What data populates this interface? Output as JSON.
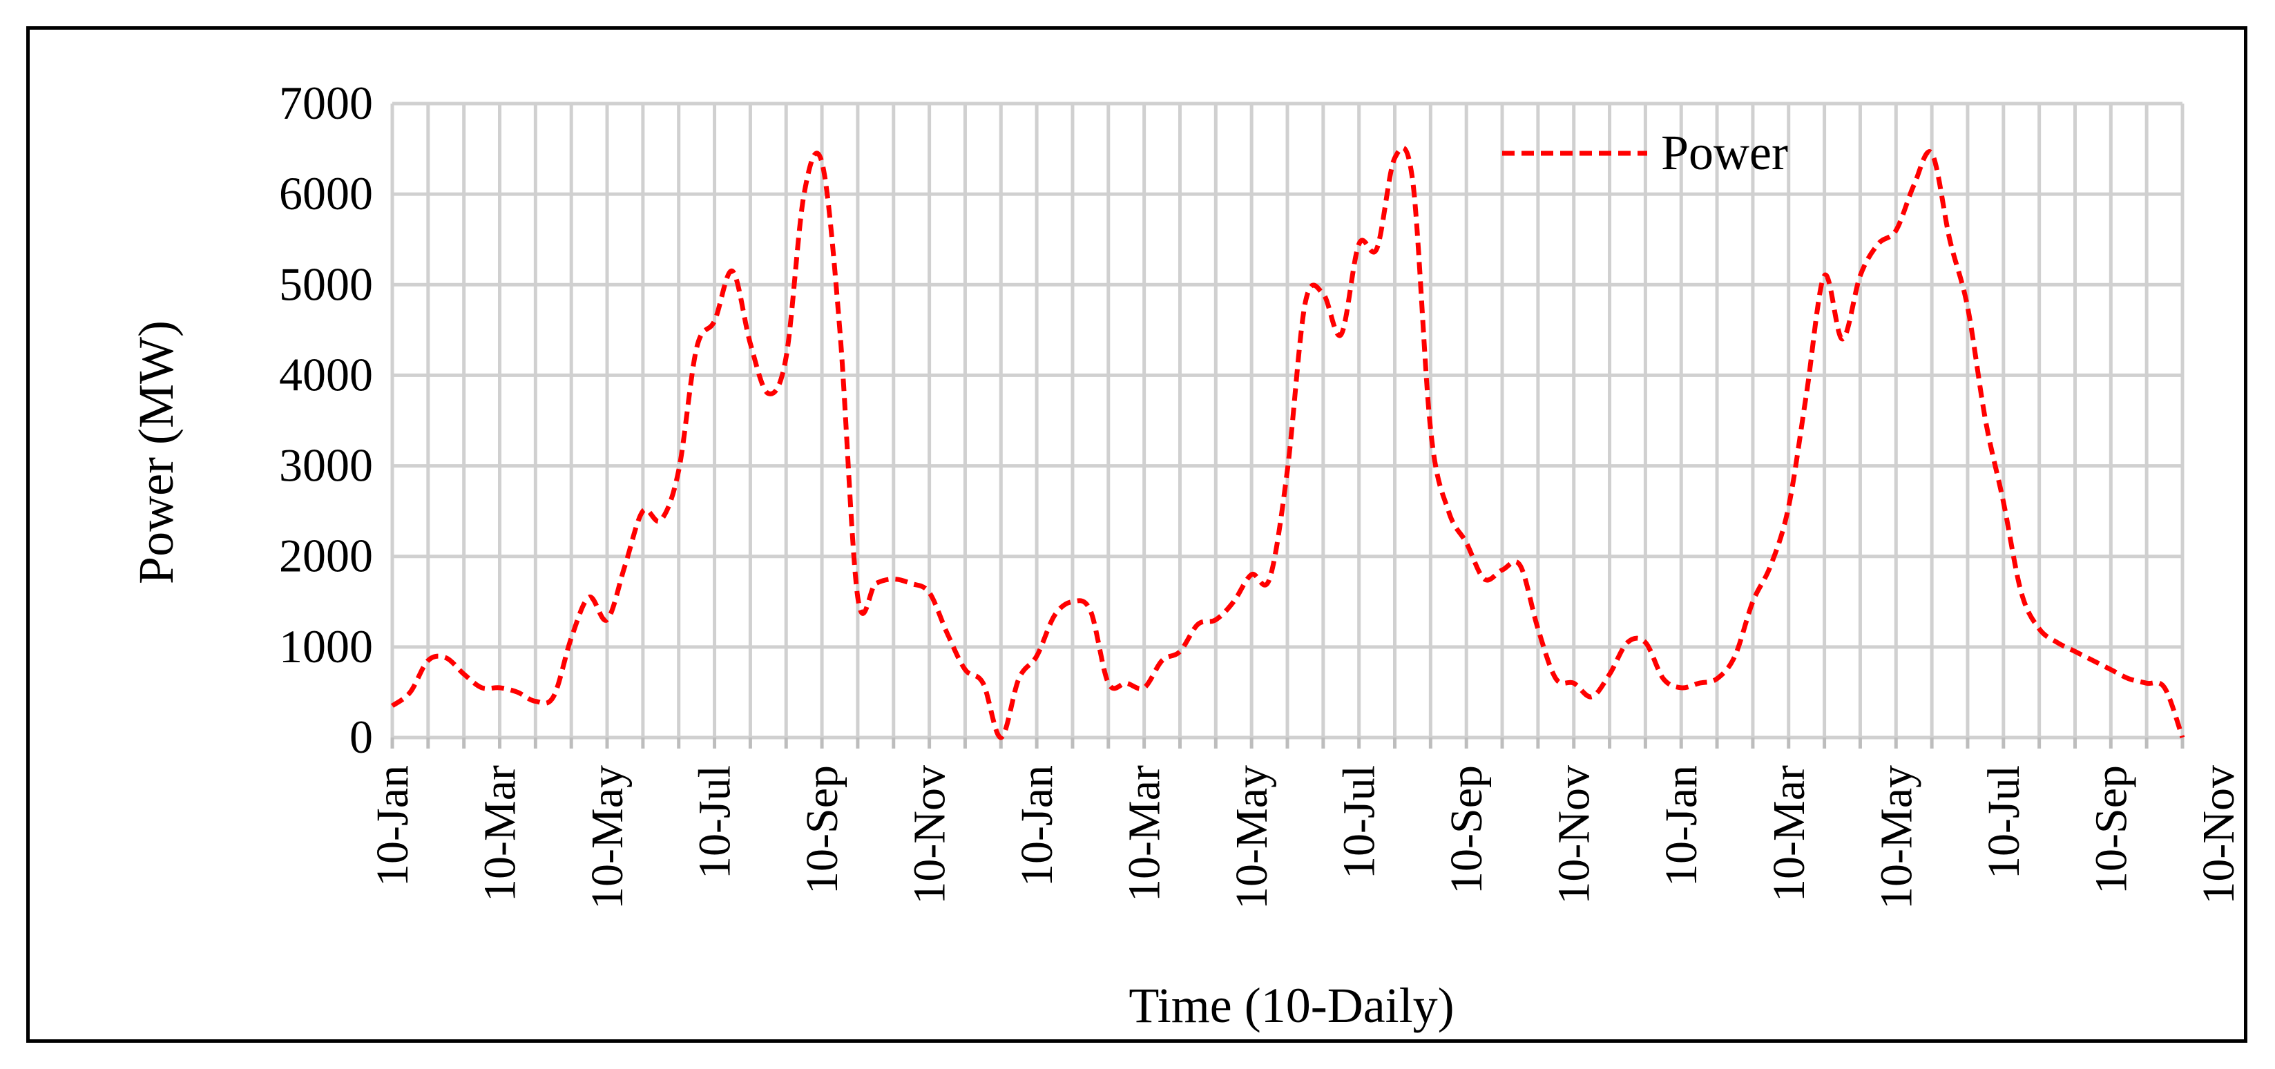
{
  "chart_data": {
    "type": "line",
    "title": "",
    "xlabel": "Time (10-Daily)",
    "ylabel": "Power (MW)",
    "ylim": [
      0,
      7000
    ],
    "yticks": [
      0,
      1000,
      2000,
      3000,
      4000,
      5000,
      6000,
      7000
    ],
    "x_tick_labels": [
      "10-Jan",
      "10-Mar",
      "10-May",
      "10-Jul",
      "10-Sep",
      "10-Nov",
      "10-Jan",
      "10-Mar",
      "10-May",
      "10-Jul",
      "10-Sep",
      "10-Nov",
      "10-Jan",
      "10-Mar",
      "10-May",
      "10-Jul",
      "10-Sep",
      "10-Nov"
    ],
    "x_tick_every": 6,
    "grid": true,
    "legend_position": "top-right",
    "series": [
      {
        "name": "Power",
        "color": "#ff0000",
        "line_style": "dashed",
        "values": [
          350,
          500,
          850,
          880,
          700,
          550,
          550,
          500,
          400,
          450,
          1100,
          1550,
          1300,
          1900,
          2500,
          2400,
          2950,
          4300,
          4600,
          5150,
          4350,
          3800,
          4200,
          6000,
          6350,
          4500,
          1550,
          1700,
          1750,
          1700,
          1600,
          1150,
          750,
          600,
          0,
          650,
          900,
          1350,
          1500,
          1400,
          600,
          600,
          550,
          850,
          950,
          1250,
          1300,
          1500,
          1800,
          1750,
          2950,
          4800,
          4900,
          4450,
          5450,
          5400,
          6400,
          6150,
          3400,
          2500,
          2150,
          1750,
          1850,
          1900,
          1200,
          650,
          600,
          450,
          700,
          1050,
          1050,
          650,
          550,
          600,
          650,
          900,
          1500,
          1900,
          2550,
          3800,
          5100,
          4400,
          5100,
          5450,
          5600,
          6100,
          6450,
          5500,
          4750,
          3500,
          2600,
          1600,
          1200,
          1050,
          950,
          850,
          750,
          650,
          600,
          550,
          0
        ]
      }
    ]
  }
}
